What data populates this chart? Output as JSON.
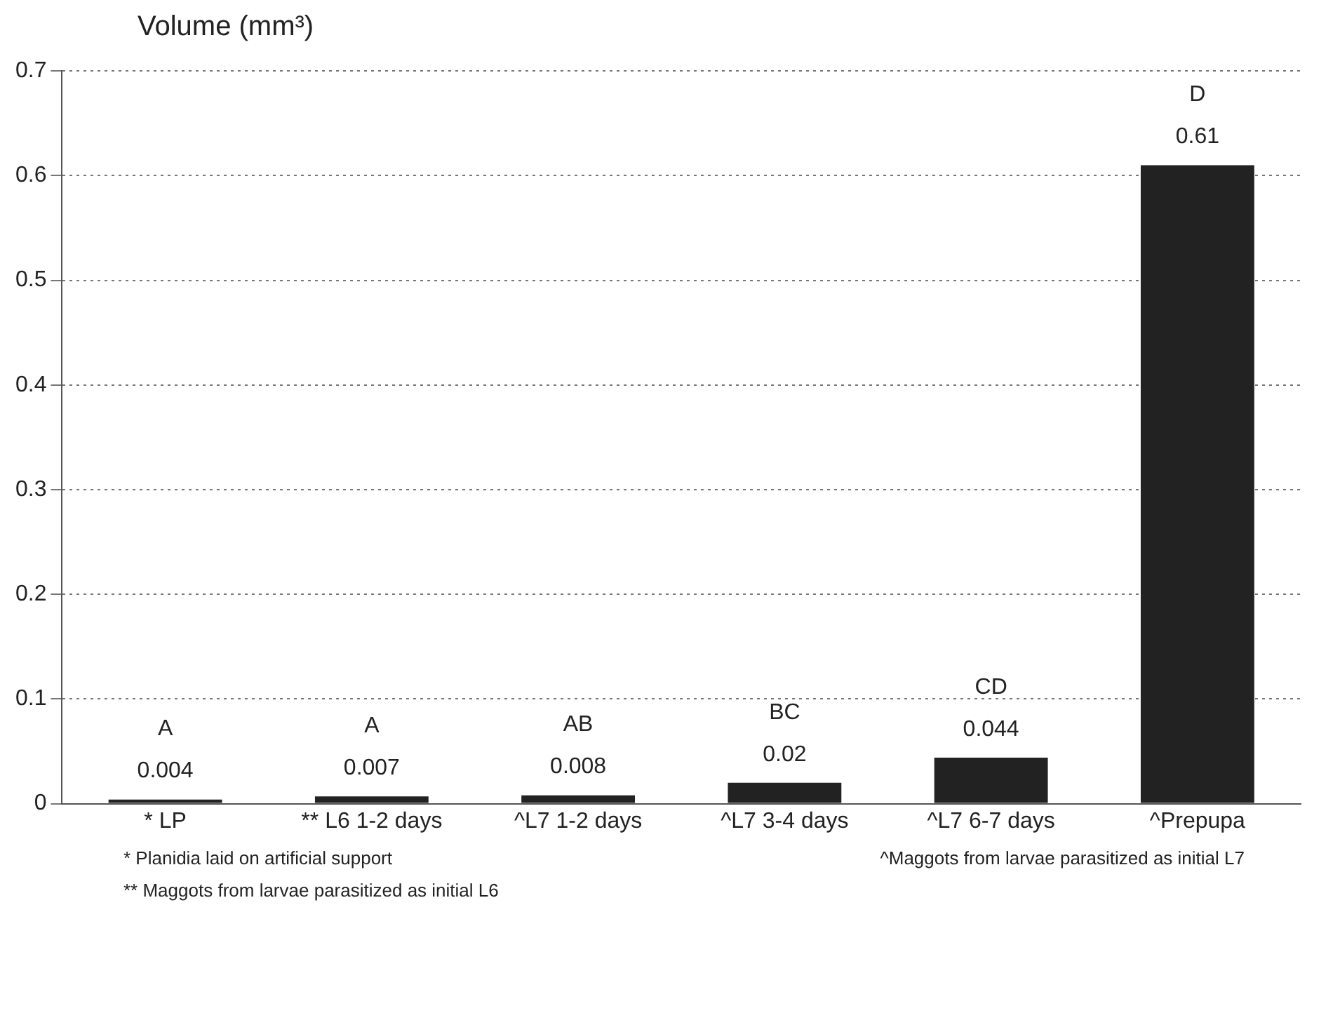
{
  "chart_data": {
    "type": "bar",
    "ylabel": "Volume (mm³)",
    "categories": [
      "* LP",
      "** L6 1-2 days",
      "^L7 1-2 days",
      "^L7 3-4 days",
      "^L7 6-7 days",
      "^Prepupa"
    ],
    "values": [
      0.004,
      0.007,
      0.008,
      0.02,
      0.044,
      0.61
    ],
    "color": "#222222",
    "data_labels": true,
    "ylim": [
      0,
      0.7
    ],
    "yticks": [
      0,
      0.1,
      0.2,
      0.3,
      0.4,
      0.5,
      0.6,
      0.7
    ],
    "grid": "y",
    "legend": false,
    "annotations": [
      {
        "text": "A",
        "x": "* LP",
        "y": 0.004
      },
      {
        "text": "A",
        "x": "** L6 1-2 days",
        "y": 0.007
      },
      {
        "text": "AB",
        "x": "^L7 1-2 days",
        "y": 0.008
      },
      {
        "text": "BC",
        "x": "^L7 3-4 days",
        "y": 0.02
      },
      {
        "text": "CD",
        "x": "^L7 6-7 days",
        "y": 0.044
      },
      {
        "text": "D",
        "x": "^Prepupa",
        "y": 0.61
      },
      "* Planidia laid on artificial support",
      "** Maggots from larvae parasitized as initial L6",
      "^Maggots from larvae parasitized as initial L7"
    ]
  }
}
